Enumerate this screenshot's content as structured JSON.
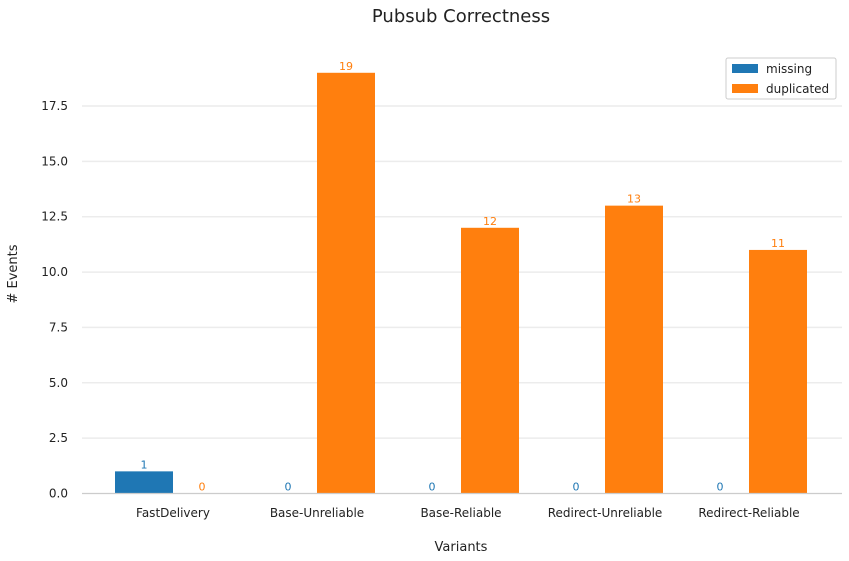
{
  "chart_data": {
    "type": "bar",
    "title": "Pubsub Correctness",
    "xlabel": "Variants",
    "ylabel": "# Events",
    "categories": [
      "FastDelivery",
      "Base-Unreliable",
      "Base-Reliable",
      "Redirect-Unreliable",
      "Redirect-Reliable"
    ],
    "series": [
      {
        "name": "missing",
        "values": [
          1,
          0,
          0,
          0,
          0
        ],
        "color": "#1f77b4"
      },
      {
        "name": "duplicated",
        "values": [
          0,
          19,
          12,
          13,
          11
        ],
        "color": "#ff7f0e"
      }
    ],
    "ylim": [
      0,
      20
    ],
    "yticks": [
      "0.0",
      "2.5",
      "5.0",
      "7.5",
      "10.0",
      "12.5",
      "15.0",
      "17.5"
    ],
    "grid": true,
    "legend_position": "top-right"
  }
}
